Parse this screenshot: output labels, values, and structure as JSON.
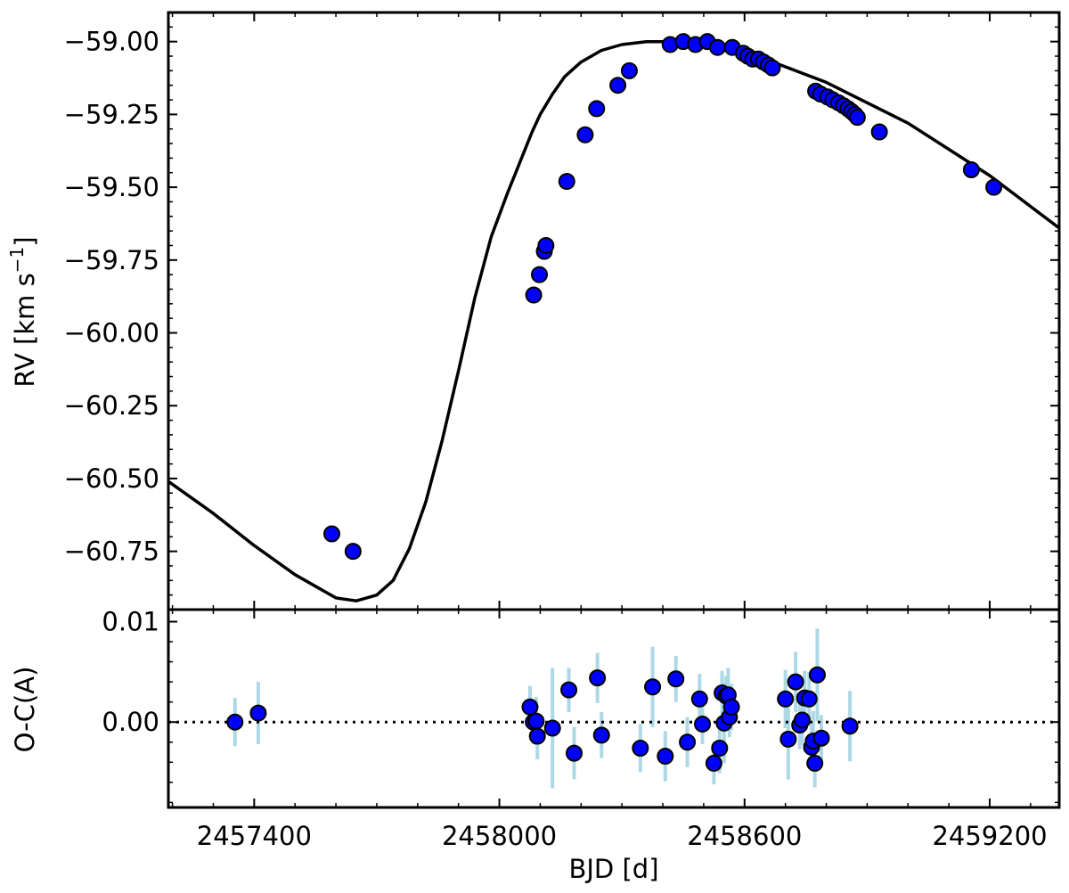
{
  "chart_data": {
    "type": "scatter",
    "x_label": "BJD [d]",
    "x_ticks": [
      2457400,
      2458000,
      2458600,
      2459200
    ],
    "x_range": [
      2457190,
      2459370
    ],
    "colors": {
      "point": "#0000ff",
      "error_bar": "#add8e6",
      "line": "#000000"
    },
    "panels": [
      {
        "id": "rv",
        "y_label": "RV [km s",
        "y_label_sup": "−1",
        "y_label_end": "]",
        "y_ticks": [
          -59.0,
          -59.25,
          -59.5,
          -59.75,
          -60.0,
          -60.25,
          -60.5,
          -60.75
        ],
        "y_tick_labels": [
          "−59.00",
          "−59.25",
          "−59.50",
          "−59.75",
          "−60.00",
          "−60.25",
          "−60.50",
          "−60.75"
        ],
        "y_range": [
          -60.95,
          -58.9
        ],
        "model_curve": {
          "x": [
            2457190,
            2457300,
            2457400,
            2457500,
            2457600,
            2457650,
            2457700,
            2457740,
            2457780,
            2457820,
            2457860,
            2457900,
            2457940,
            2457980,
            2458020,
            2458040,
            2458060,
            2458080,
            2458100,
            2458130,
            2458160,
            2458200,
            2458250,
            2458300,
            2458360,
            2458420,
            2458480,
            2458540,
            2458600,
            2458650,
            2458800,
            2459000,
            2459200,
            2459370
          ],
          "y": [
            -60.51,
            -60.62,
            -60.73,
            -60.83,
            -60.91,
            -60.92,
            -60.9,
            -60.85,
            -60.74,
            -60.58,
            -60.37,
            -60.13,
            -59.88,
            -59.67,
            -59.52,
            -59.45,
            -59.38,
            -59.31,
            -59.25,
            -59.18,
            -59.12,
            -59.07,
            -59.03,
            -59.01,
            -59.0,
            -59.0,
            -59.01,
            -59.02,
            -59.04,
            -59.06,
            -59.14,
            -59.28,
            -59.46,
            -59.64
          ]
        },
        "points": {
          "x": [
            2457590,
            2457642,
            2458084,
            2458098,
            2458110,
            2458114,
            2458165,
            2458210,
            2458238,
            2458290,
            2458318,
            2458418,
            2458450,
            2458480,
            2458509,
            2458534,
            2458570,
            2458597,
            2458608,
            2458620,
            2458634,
            2458646,
            2458658,
            2458668,
            2458774,
            2458786,
            2458803,
            2458816,
            2458830,
            2458842,
            2458853,
            2458862,
            2458870,
            2458876,
            2458930,
            2459155,
            2459210
          ],
          "y": [
            -60.69,
            -60.75,
            -59.87,
            -59.8,
            -59.72,
            -59.7,
            -59.48,
            -59.32,
            -59.23,
            -59.15,
            -59.1,
            -59.01,
            -59.0,
            -59.01,
            -59.0,
            -59.02,
            -59.02,
            -59.04,
            -59.05,
            -59.06,
            -59.06,
            -59.07,
            -59.08,
            -59.09,
            -59.17,
            -59.18,
            -59.19,
            -59.2,
            -59.21,
            -59.22,
            -59.23,
            -59.24,
            -59.25,
            -59.26,
            -59.31,
            -59.44,
            -59.5
          ]
        }
      },
      {
        "id": "residuals",
        "y_label": "O-C(A)",
        "y_ticks": [
          0.01,
          0.0
        ],
        "y_tick_labels": [
          "0.01",
          "0.00"
        ],
        "y_range": [
          -0.0085,
          0.0112
        ],
        "zero_line": true,
        "points": {
          "x": [
            2457353,
            2457410,
            2458075,
            2458083,
            2458090,
            2458093,
            2458130,
            2458170,
            2458183,
            2458240,
            2458250,
            2458345,
            2458375,
            2458406,
            2458432,
            2458460,
            2458490,
            2458497,
            2458525,
            2458539,
            2458545,
            2458550,
            2458555,
            2458560,
            2458563,
            2458568,
            2458700,
            2458707,
            2458725,
            2458735,
            2458741,
            2458747,
            2458758,
            2458764,
            2458768,
            2458772,
            2458778,
            2458788,
            2458858
          ],
          "y": [
            0.0,
            0.0009,
            0.0015,
            0.0,
            0.0001,
            -0.0014,
            -0.0006,
            0.0032,
            -0.0031,
            0.0044,
            -0.0013,
            -0.0026,
            0.0035,
            -0.0034,
            0.0043,
            -0.002,
            0.0023,
            -0.0002,
            -0.0041,
            -0.0026,
            0.0029,
            -0.0001,
            0.0026,
            0.0027,
            0.0005,
            0.0015,
            0.0023,
            -0.0017,
            0.004,
            -0.0003,
            0.0002,
            0.0024,
            0.0023,
            -0.0025,
            -0.0019,
            -0.0041,
            0.0047,
            -0.0016,
            -0.0004
          ],
          "err": [
            0.0024,
            0.0031,
            0.0021,
            0.0022,
            0.0024,
            0.0023,
            0.006,
            0.0022,
            0.0026,
            0.0025,
            0.0023,
            0.0024,
            0.004,
            0.0025,
            0.0023,
            0.0025,
            0.0025,
            0.002,
            0.0021,
            0.0025,
            0.0022,
            0.004,
            0.002,
            0.0027,
            0.002,
            0.0023,
            0.0029,
            0.004,
            0.003,
            0.0024,
            0.0025,
            0.0027,
            0.0027,
            0.0023,
            0.003,
            0.0024,
            0.0046,
            0.0023,
            0.0035
          ]
        }
      }
    ]
  }
}
